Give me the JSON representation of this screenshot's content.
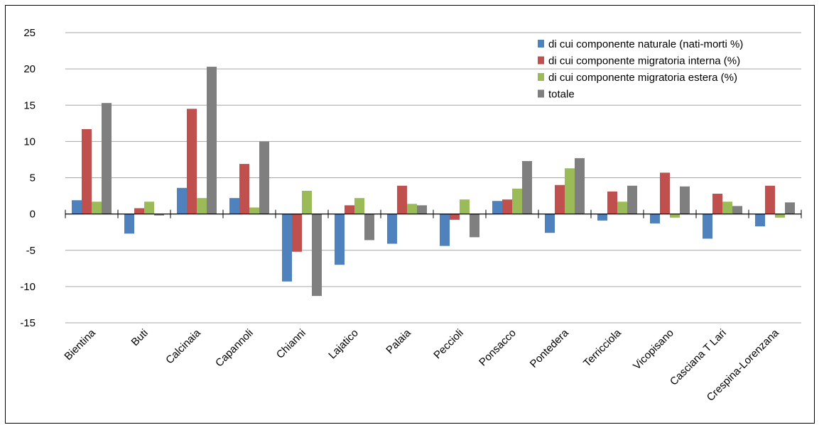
{
  "chart_data": {
    "type": "bar",
    "categories": [
      "Bientina",
      "Buti",
      "Calcinaia",
      "Capannoli",
      "Chianni",
      "Lajatico",
      "Palaia",
      "Peccioli",
      "Ponsacco",
      "Pontedera",
      "Terricciola",
      "Vicopisano",
      "Casciana T Lari",
      "Crespina-Lorenzana"
    ],
    "series": [
      {
        "name": "di cui componente naturale (nati-morti %)",
        "color": "#4f81bd",
        "values": [
          1.9,
          -2.7,
          3.6,
          2.2,
          -9.3,
          -7.0,
          -4.1,
          -4.4,
          1.8,
          -2.6,
          -0.9,
          -1.3,
          -3.4,
          -1.7
        ]
      },
      {
        "name": "di cui componente migratoria interna (%)",
        "color": "#c0504d",
        "values": [
          11.7,
          0.8,
          14.5,
          6.9,
          -5.2,
          1.2,
          3.9,
          -0.8,
          2.0,
          4.0,
          3.1,
          5.7,
          2.8,
          3.9
        ]
      },
      {
        "name": "di cui componente migratoria estera (%)",
        "color": "#9bbb59",
        "values": [
          1.7,
          1.7,
          2.2,
          0.9,
          3.2,
          2.2,
          1.4,
          2.0,
          3.5,
          6.3,
          1.7,
          -0.5,
          1.7,
          -0.5
        ]
      },
      {
        "name": "totale",
        "color": "#7f7f7f",
        "values": [
          15.3,
          -0.2,
          20.3,
          10.0,
          -11.3,
          -3.6,
          1.2,
          -3.2,
          7.3,
          7.7,
          3.9,
          3.8,
          1.1,
          1.6
        ]
      }
    ],
    "yticks": [
      "25",
      "20",
      "15",
      "10",
      "5",
      "0",
      "-5",
      "-10",
      "-15"
    ],
    "ylim": [
      -15,
      25
    ],
    "grid": true,
    "legend_position": "top-right"
  }
}
